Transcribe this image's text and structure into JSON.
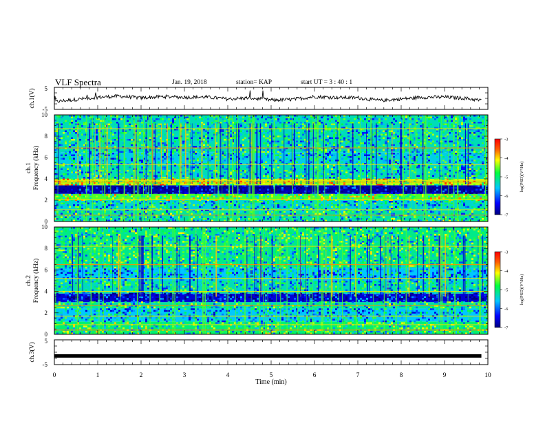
{
  "header": {
    "title": "VLF Spectra",
    "date": "Jan. 19, 2018",
    "station": "station= KAP",
    "start": "start UT =  3 : 40 : 1"
  },
  "colors": {
    "spectrogram_base": "#00c8ff",
    "trace": "#000000"
  },
  "chart_data": [
    {
      "type": "line",
      "panel": "ch1-waveform",
      "ylabel": "ch.1(V)",
      "ylim": [
        -5,
        5
      ],
      "y_ticks": [
        "-5",
        "5"
      ],
      "x_range": [
        0,
        10
      ],
      "description_values": "noisy waveform roughly between -2 and 2 V, spikes to ~4 V",
      "x": [
        0,
        0.5,
        1,
        1.5,
        2,
        2.5,
        3,
        3.5,
        4,
        4.5,
        5,
        5.5,
        6,
        6.5,
        7,
        7.5,
        8,
        8.5,
        9,
        9.5,
        9.85
      ],
      "y": [
        -1.5,
        -0.5,
        0.5,
        1,
        0.2,
        0.8,
        0.5,
        0.6,
        -0.3,
        0.2,
        -0.8,
        -0.5,
        0.8,
        0.4,
        0.3,
        -1,
        -0.3,
        0.5,
        0.6,
        0,
        -1
      ]
    },
    {
      "type": "heatmap",
      "panel": "ch1-spectrogram",
      "ylabel_top": "ch.1",
      "ylabel": "Frequency (kHz)",
      "ylim": [
        0,
        10
      ],
      "y_ticks": [
        "0",
        "2",
        "4",
        "6",
        "8",
        "10"
      ],
      "x_range": [
        0,
        10
      ],
      "colorbar": {
        "label": "log(PSD)(V²/Hz)",
        "range": [
          -7,
          -3
        ],
        "ticks": [
          "-3",
          "-4",
          "-5",
          "-6",
          "-7"
        ]
      },
      "bands_khz": [
        {
          "f": [
            0.0,
            1.0
          ],
          "level": -5.2
        },
        {
          "f": [
            1.0,
            2.0
          ],
          "level": -5.4
        },
        {
          "f": [
            2.0,
            2.6
          ],
          "level": -4.6
        },
        {
          "f": [
            2.6,
            3.4
          ],
          "level": -6.8
        },
        {
          "f": [
            3.4,
            4.0
          ],
          "level": -4.3
        },
        {
          "f": [
            4.0,
            5.3
          ],
          "level": -5.3
        },
        {
          "f": [
            5.3,
            6.5
          ],
          "level": -5.5
        },
        {
          "f": [
            6.5,
            10.0
          ],
          "level": -5.3
        }
      ]
    },
    {
      "type": "heatmap",
      "panel": "ch2-spectrogram",
      "ylabel_top": "ch.2",
      "ylabel": "Frequency (kHz)",
      "ylim": [
        0,
        10
      ],
      "y_ticks": [
        "0",
        "2",
        "4",
        "6",
        "8",
        "10"
      ],
      "x_range": [
        0,
        10
      ],
      "colorbar": {
        "label": "log(PSD)(V²/Hz)",
        "range": [
          -7,
          -3
        ],
        "ticks": [
          "-3",
          "-4",
          "-5",
          "-6",
          "-7"
        ]
      },
      "bands_khz": [
        {
          "f": [
            0.0,
            1.2
          ],
          "level": -5.0
        },
        {
          "f": [
            1.2,
            2.4
          ],
          "level": -5.6
        },
        {
          "f": [
            2.4,
            3.0
          ],
          "level": -5.2
        },
        {
          "f": [
            3.0,
            3.8
          ],
          "level": -6.6
        },
        {
          "f": [
            3.8,
            5.0
          ],
          "level": -5.3
        },
        {
          "f": [
            5.0,
            6.2
          ],
          "level": -5.6
        },
        {
          "f": [
            6.2,
            10.0
          ],
          "level": -5.1
        }
      ]
    },
    {
      "type": "line",
      "panel": "ch3-waveform",
      "ylabel": "ch.3(V)",
      "xlabel": "Time (min)",
      "ylim": [
        -5,
        5
      ],
      "y_ticks": [
        "-5",
        "5"
      ],
      "x_range": [
        0,
        10
      ],
      "x_ticks": [
        "0",
        "1",
        "2",
        "3",
        "4",
        "5",
        "6",
        "7",
        "8",
        "9",
        "10"
      ],
      "x": [
        0,
        9.85
      ],
      "y": [
        -1.5,
        -1.5
      ]
    }
  ]
}
